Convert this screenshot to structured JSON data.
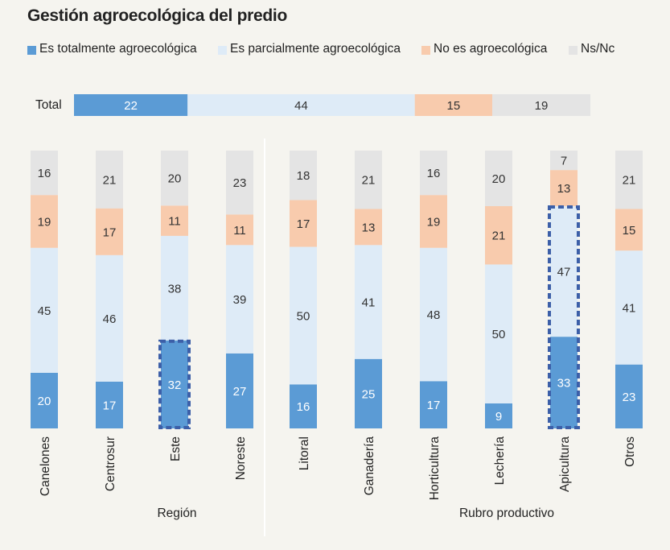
{
  "title": "Gestión agroecológica del predio",
  "legend": [
    {
      "label": "Es totalmente agroecológica",
      "color": "#5b9bd5"
    },
    {
      "label": "Es parcialmente agroecológica",
      "color": "#deebf7"
    },
    {
      "label": "No es agroecológica",
      "color": "#f8cbad"
    },
    {
      "label": "Ns/Nc",
      "color": "#e4e4e4"
    }
  ],
  "chart_data": [
    {
      "type": "bar",
      "orientation": "horizontal",
      "stacked": true,
      "categories": [
        "Total"
      ],
      "series": [
        {
          "name": "Es totalmente agroecológica",
          "values": [
            22
          ]
        },
        {
          "name": "Es parcialmente agroecológica",
          "values": [
            44
          ]
        },
        {
          "name": "No es agroecológica",
          "values": [
            15
          ]
        },
        {
          "name": "Ns/Nc",
          "values": [
            19
          ]
        }
      ]
    },
    {
      "type": "bar",
      "orientation": "vertical",
      "stacked": true,
      "xlabel": "Región",
      "categories": [
        "Canelones",
        "Centrosur",
        "Este",
        "Noreste"
      ],
      "highlight": {
        "category": "Este",
        "series": "Es totalmente agroecológica"
      },
      "series": [
        {
          "name": "Es totalmente agroecológica",
          "values": [
            20,
            17,
            32,
            27
          ]
        },
        {
          "name": "Es parcialmente agroecológica",
          "values": [
            45,
            46,
            38,
            39
          ]
        },
        {
          "name": "No es agroecológica",
          "values": [
            19,
            17,
            11,
            11
          ]
        },
        {
          "name": "Ns/Nc",
          "values": [
            16,
            21,
            20,
            23
          ]
        }
      ]
    },
    {
      "type": "bar",
      "orientation": "vertical",
      "stacked": true,
      "xlabel": "Rubro productivo",
      "categories": [
        "Litoral",
        "Ganadería",
        "Horticultura",
        "Lechería",
        "Apicultura",
        "Otros"
      ],
      "highlight": {
        "category": "Apicultura",
        "series": [
          "Es totalmente agroecológica",
          "Es parcialmente agroecológica"
        ]
      },
      "series": [
        {
          "name": "Es totalmente agroecológica",
          "values": [
            16,
            25,
            17,
            9,
            33,
            23
          ]
        },
        {
          "name": "Es parcialmente agroecológica",
          "values": [
            50,
            41,
            48,
            50,
            47,
            41
          ]
        },
        {
          "name": "No es agroecológica",
          "values": [
            17,
            13,
            19,
            21,
            13,
            15
          ]
        },
        {
          "name": "Ns/Nc",
          "values": [
            18,
            21,
            16,
            20,
            7,
            21
          ]
        }
      ]
    }
  ]
}
